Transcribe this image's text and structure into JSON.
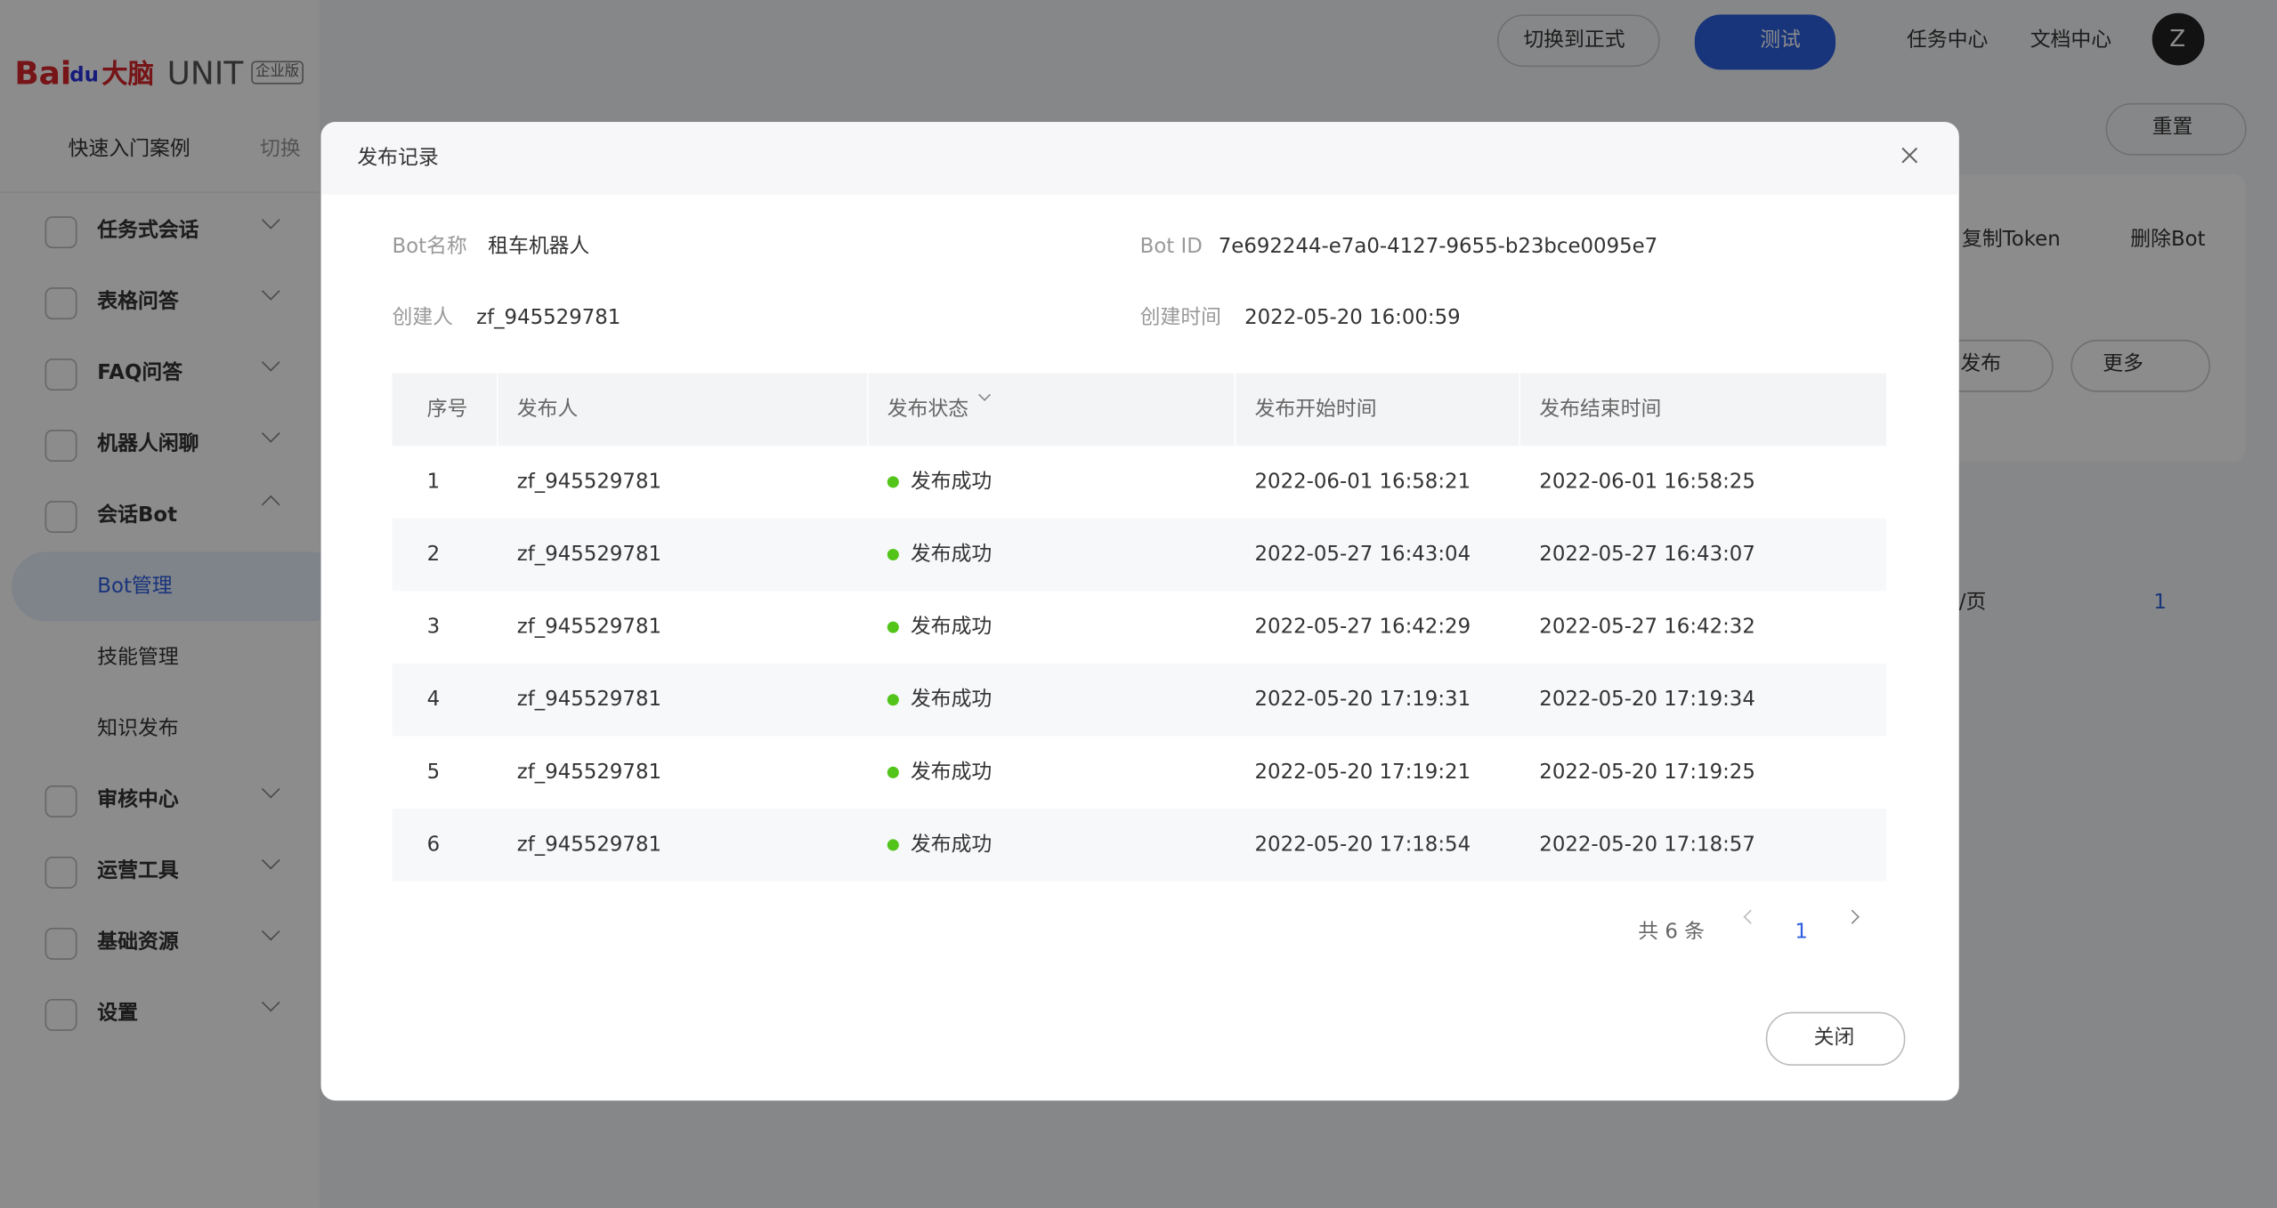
{
  "header": {
    "logo_brand": "Bai",
    "logo_du": "du",
    "logo_naozi": "大脑",
    "logo_unit": "UNIT",
    "edition": "企业版",
    "switch_formal": "切换到正式",
    "test": "测试",
    "task_center": "任务中心",
    "doc_center": "文档中心",
    "avatar": "Z"
  },
  "sidebar": {
    "quick_start": "快速入门案例",
    "switch": "切换",
    "items": [
      "任务式会话",
      "表格问答",
      "FAQ问答",
      "机器人闲聊",
      "会话Bot",
      "Bot管理",
      "技能管理",
      "知识发布",
      "审核中心",
      "运营工具",
      "基础资源",
      "设置"
    ]
  },
  "background": {
    "reset": "重置",
    "copy_token": "复制Token",
    "delete_bot": "删除Bot",
    "publish": "发布",
    "more": "更多",
    "per_page": "/页",
    "page": "1"
  },
  "modal": {
    "title": "发布记录",
    "fields": [
      {
        "label": "Bot名称",
        "value": "租车机器人"
      },
      {
        "label": "Bot ID",
        "value": "7e692244-e7a0-4127-9655-b23bce0095e7"
      },
      {
        "label": "创建人",
        "value": "zf_945529781"
      },
      {
        "label": "创建时间",
        "value": "2022-05-20 16:00:59"
      }
    ],
    "table": {
      "columns": [
        "序号",
        "发布人",
        "发布状态",
        "发布开始时间",
        "发布结束时间"
      ],
      "rows": [
        [
          "1",
          "zf_945529781",
          "发布成功",
          "2022-06-01 16:58:21",
          "2022-06-01 16:58:25"
        ],
        [
          "2",
          "zf_945529781",
          "发布成功",
          "2022-05-27 16:43:04",
          "2022-05-27 16:43:07"
        ],
        [
          "3",
          "zf_945529781",
          "发布成功",
          "2022-05-27 16:42:29",
          "2022-05-27 16:42:32"
        ],
        [
          "4",
          "zf_945529781",
          "发布成功",
          "2022-05-20 17:19:31",
          "2022-05-20 17:19:34"
        ],
        [
          "5",
          "zf_945529781",
          "发布成功",
          "2022-05-20 17:19:21",
          "2022-05-20 17:19:25"
        ],
        [
          "6",
          "zf_945529781",
          "发布成功",
          "2022-05-20 17:18:54",
          "2022-05-20 17:18:57"
        ]
      ]
    },
    "pagination": {
      "total": "共 6 条",
      "page": "1"
    },
    "close_button": "关闭"
  }
}
